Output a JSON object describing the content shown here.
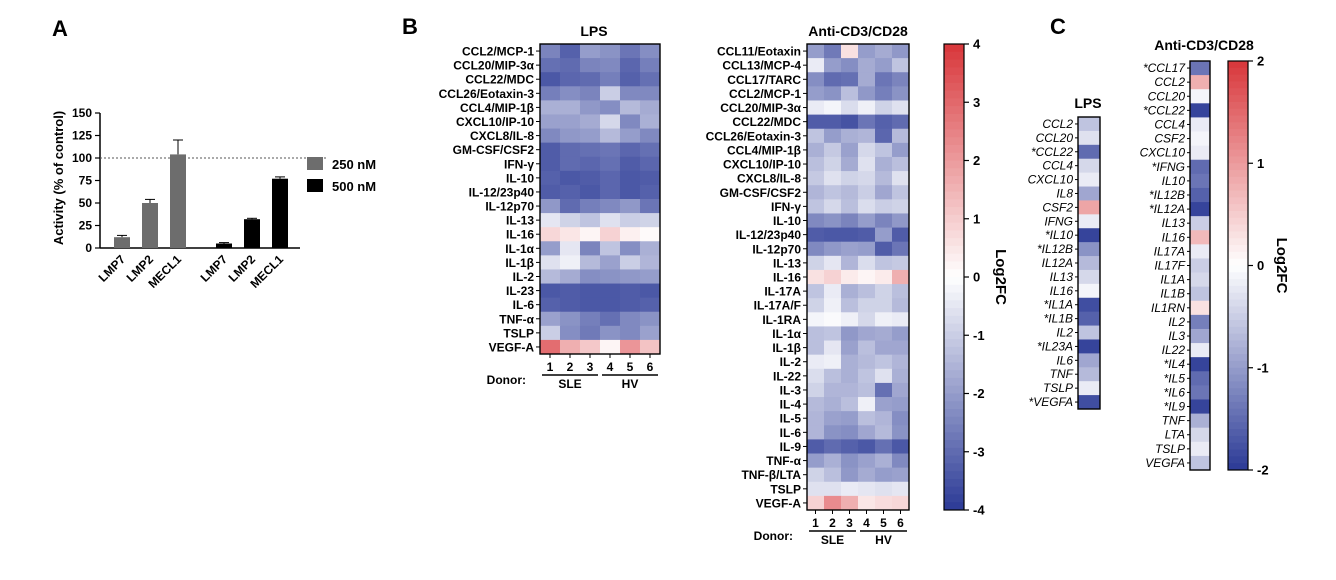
{
  "panel_labels": {
    "a": "A",
    "b": "B",
    "c": "C"
  },
  "colors": {
    "gray": "#6d6d6d",
    "black": "#000000",
    "blue": "#2b3a96",
    "white": "#ffffff",
    "red": "#d8363a"
  },
  "colorbar_b": {
    "label": "Log2FC",
    "ticks": [
      "4",
      "3",
      "2",
      "1",
      "0",
      "-1",
      "-2",
      "-3",
      "-4"
    ],
    "min": -4,
    "max": 4
  },
  "colorbar_c": {
    "label": "Log2FC",
    "ticks": [
      "2",
      "1",
      "0",
      "-1",
      "-2"
    ],
    "min": -2,
    "max": 2
  },
  "chart_data": [
    {
      "type": "bar",
      "panel": "A",
      "ylabel": "Activity (% of control)",
      "ylim": [
        0,
        150
      ],
      "yticks": [
        "0",
        "25",
        "50",
        "75",
        "100",
        "125",
        "150"
      ],
      "reference_line": 100,
      "groups": [
        {
          "name": "250 nM",
          "color": "#6d6d6d",
          "categories": [
            "LMP7",
            "LMP2",
            "MECL1"
          ],
          "values": [
            12,
            50,
            104
          ],
          "errors": [
            2,
            4,
            16
          ]
        },
        {
          "name": "500 nM",
          "color": "#000000",
          "categories": [
            "LMP7",
            "LMP2",
            "MECL1"
          ],
          "values": [
            5,
            32,
            77
          ],
          "errors": [
            1,
            1,
            2
          ]
        }
      ],
      "legend": [
        "250 nM",
        "500 nM"
      ]
    },
    {
      "type": "heatmap",
      "panel": "B-LPS",
      "title": "LPS",
      "rows": [
        "CCL2/MCP-1",
        "CCL20/MIP-3α",
        "CCL22/MDC",
        "CCL26/Eotaxin-3",
        "CCL4/MIP-1β",
        "CXCL10/IP-10",
        "CXCL8/IL-8",
        "GM-CSF/CSF2",
        "IFN-γ",
        "IL-10",
        "IL-12/23p40",
        "IL-12p70",
        "IL-13",
        "IL-16",
        "IL-1α",
        "IL-1β",
        "IL-2",
        "IL-23",
        "IL-6",
        "TNF-α",
        "TSLP",
        "VEGF-A"
      ],
      "columns": [
        "1",
        "2",
        "3",
        "4",
        "5",
        "6"
      ],
      "donor_label": "Donor:",
      "groups": [
        "SLE",
        "HV"
      ],
      "values": [
        [
          -2.5,
          -3.2,
          -2.0,
          -2.2,
          -2.8,
          -2.3
        ],
        [
          -2.9,
          -3.0,
          -2.5,
          -2.4,
          -3.1,
          -2.6
        ],
        [
          -3.4,
          -3.1,
          -3.0,
          -2.6,
          -3.2,
          -2.9
        ],
        [
          -2.6,
          -2.3,
          -2.5,
          -1.0,
          -2.4,
          -2.4
        ],
        [
          -1.6,
          -1.6,
          -2.1,
          -2.3,
          -1.4,
          -1.7
        ],
        [
          -1.9,
          -1.9,
          -1.7,
          -0.8,
          -2.4,
          -1.6
        ],
        [
          -2.4,
          -2.1,
          -2.0,
          -1.4,
          -2.0,
          -2.4
        ],
        [
          -3.3,
          -3.0,
          -2.9,
          -2.8,
          -3.1,
          -2.9
        ],
        [
          -3.3,
          -3.0,
          -3.1,
          -2.9,
          -3.3,
          -3.1
        ],
        [
          -3.2,
          -3.4,
          -3.3,
          -3.1,
          -3.4,
          -3.3
        ],
        [
          -3.3,
          -3.2,
          -3.4,
          -3.1,
          -3.4,
          -3.2
        ],
        [
          -2.1,
          -3.0,
          -2.6,
          -2.4,
          -2.1,
          -2.8
        ],
        [
          -0.5,
          -0.9,
          -1.2,
          -0.6,
          -1.0,
          -0.9
        ],
        [
          0.8,
          0.5,
          0.2,
          0.9,
          0.3,
          0.1
        ],
        [
          -2.0,
          -0.5,
          -2.5,
          -1.2,
          -2.3,
          -1.6
        ],
        [
          -0.6,
          -0.3,
          -1.4,
          -1.9,
          -1.0,
          -1.5
        ],
        [
          -1.4,
          -1.7,
          -2.3,
          -2.2,
          -2.1,
          -2.0
        ],
        [
          -3.4,
          -3.3,
          -3.4,
          -3.4,
          -3.3,
          -3.4
        ],
        [
          -3.2,
          -3.3,
          -3.4,
          -3.4,
          -3.3,
          -3.2
        ],
        [
          -1.9,
          -2.2,
          -2.6,
          -2.9,
          -2.4,
          -2.2
        ],
        [
          -1.0,
          -2.3,
          -2.7,
          -2.2,
          -2.4,
          -1.9
        ],
        [
          2.9,
          1.6,
          1.1,
          0.2,
          2.1,
          1.2
        ]
      ]
    },
    {
      "type": "heatmap",
      "panel": "B-CD3",
      "title": "Anti-CD3/CD28",
      "rows": [
        "CCL11/Eotaxin",
        "CCL13/MCP-4",
        "CCL17/TARC",
        "CCL2/MCP-1",
        "CCL20/MIP-3α",
        "CCL22/MDC",
        "CCL26/Eotaxin-3",
        "CCL4/MIP-1β",
        "CXCL10/IP-10",
        "CXCL8/IL-8",
        "GM-CSF/CSF2",
        "IFN-γ",
        "IL-10",
        "IL-12/23p40",
        "IL-12p70",
        "IL-13",
        "IL-16",
        "IL-17A",
        "IL-17A/F",
        "IL-1RA",
        "IL-1α",
        "IL-1β",
        "IL-2",
        "IL-22",
        "IL-3",
        "IL-4",
        "IL-5",
        "IL-6",
        "IL-9",
        "TNF-α",
        "TNF-β/LTA",
        "TSLP",
        "VEGF-A"
      ],
      "columns": [
        "1",
        "2",
        "3",
        "4",
        "5",
        "6"
      ],
      "donor_label": "Donor:",
      "groups": [
        "SLE",
        "HV"
      ],
      "values": [
        [
          -2.0,
          -2.7,
          0.6,
          -2.0,
          -1.7,
          -2.1
        ],
        [
          -0.4,
          -2.0,
          -2.3,
          -1.7,
          -2.0,
          -1.2
        ],
        [
          -2.3,
          -3.0,
          -2.9,
          -1.7,
          -2.8,
          -2.5
        ],
        [
          -2.0,
          -2.2,
          -1.3,
          -2.1,
          -2.6,
          -2.2
        ],
        [
          -0.4,
          -0.2,
          -0.7,
          -0.3,
          -0.9,
          -0.6
        ],
        [
          -3.3,
          -3.3,
          -3.5,
          -2.8,
          -3.2,
          -3.0
        ],
        [
          -1.2,
          -2.0,
          -1.6,
          -1.5,
          -3.1,
          -1.4
        ],
        [
          -1.6,
          -1.1,
          -1.9,
          -0.8,
          -1.2,
          -2.0
        ],
        [
          -1.3,
          -0.9,
          -1.7,
          -0.6,
          -1.6,
          -1.3
        ],
        [
          -1.1,
          -0.6,
          -0.9,
          -0.8,
          -1.4,
          -0.6
        ],
        [
          -1.5,
          -1.2,
          -1.4,
          -1.0,
          -1.8,
          -1.2
        ],
        [
          -1.2,
          -0.8,
          -1.3,
          -0.7,
          -1.0,
          -0.9
        ],
        [
          -2.4,
          -2.2,
          -2.5,
          -2.0,
          -2.5,
          -2.1
        ],
        [
          -3.3,
          -3.4,
          -3.4,
          -3.3,
          -2.0,
          -3.3
        ],
        [
          -2.4,
          -2.1,
          -1.9,
          -2.0,
          -3.3,
          -2.8
        ],
        [
          -0.9,
          -0.5,
          -1.5,
          -0.7,
          -1.2,
          -1.1
        ],
        [
          0.6,
          0.9,
          0.4,
          0.2,
          0.4,
          1.6
        ],
        [
          -1.2,
          -0.4,
          -1.6,
          -1.3,
          -0.9,
          -1.3
        ],
        [
          -0.9,
          -0.3,
          -1.3,
          -0.9,
          -0.9,
          -1.4
        ],
        [
          -0.2,
          -0.1,
          -0.3,
          -0.8,
          -0.3,
          -0.4
        ],
        [
          -1.3,
          -1.2,
          -2.1,
          -1.8,
          -1.7,
          -2.0
        ],
        [
          -1.3,
          -0.5,
          -1.9,
          -1.3,
          -1.8,
          -1.8
        ],
        [
          -0.4,
          -0.3,
          -1.6,
          -1.4,
          -1.2,
          -1.5
        ],
        [
          -0.7,
          -1.3,
          -1.6,
          -1.2,
          -0.6,
          -1.6
        ],
        [
          -0.9,
          -1.5,
          -1.5,
          -1.3,
          -2.9,
          -1.8
        ],
        [
          -1.4,
          -1.6,
          -1.3,
          -0.3,
          -1.9,
          -2.0
        ],
        [
          -1.5,
          -1.9,
          -2.0,
          -1.3,
          -1.5,
          -2.3
        ],
        [
          -1.5,
          -2.2,
          -2.3,
          -1.8,
          -1.4,
          -2.2
        ],
        [
          -3.3,
          -3.0,
          -3.2,
          -3.4,
          -2.9,
          -3.4
        ],
        [
          -2.0,
          -1.6,
          -2.2,
          -1.9,
          -1.6,
          -2.4
        ],
        [
          -0.9,
          -1.3,
          -2.1,
          -1.7,
          -2.0,
          -1.9
        ],
        [
          -0.6,
          -0.6,
          -0.4,
          -0.5,
          -0.6,
          -0.5
        ],
        [
          0.9,
          2.3,
          1.6,
          0.5,
          0.7,
          0.8
        ]
      ]
    },
    {
      "type": "heatmap",
      "panel": "C-LPS",
      "title": "LPS",
      "rows": [
        "CCL2",
        "CCL20",
        "*CCL22",
        "CCL4",
        "CXCL10",
        "IL8",
        "CSF2",
        "IFNG",
        "*IL10",
        "*IL12B",
        "IL12A",
        "IL13",
        "IL16",
        "*IL1A",
        "*IL1B",
        "IL2",
        "*IL23A",
        "IL6",
        "TNF",
        "TSLP",
        "*VEGFA"
      ],
      "values": [
        -0.6,
        -0.3,
        -1.5,
        -0.4,
        -0.2,
        -0.9,
        0.9,
        -0.2,
        -1.9,
        -1.1,
        -0.7,
        -0.4,
        -0.1,
        -1.8,
        -1.6,
        -0.6,
        -1.9,
        -0.9,
        -0.7,
        -0.2,
        -1.8
      ]
    },
    {
      "type": "heatmap",
      "panel": "C-CD3",
      "title": "Anti-CD3/CD28",
      "rows": [
        "*CCL17",
        "CCL2",
        "CCL20",
        "*CCL22",
        "CCL4",
        "CSF2",
        "CXCL10",
        "*IFNG",
        "IL10",
        "*IL12B",
        "*IL12A",
        "IL13",
        "IL16",
        "IL17A",
        "IL17F",
        "IL1A",
        "IL1B",
        "IL1RN",
        "IL2",
        "IL3",
        "IL22",
        "*IL4",
        "*IL5",
        "*IL6",
        "*IL9",
        "TNF",
        "LTA",
        "TSLP",
        "VEGFA"
      ],
      "values": [
        -1.4,
        0.8,
        -0.1,
        -1.9,
        -0.2,
        -0.1,
        -0.2,
        -1.5,
        -1.4,
        -1.6,
        -1.9,
        -0.5,
        0.7,
        -0.2,
        -0.5,
        -0.4,
        -0.6,
        0.3,
        -1.3,
        -0.9,
        -0.2,
        -1.9,
        -1.5,
        -1.4,
        -1.9,
        -0.8,
        -0.4,
        -0.2,
        -0.6
      ]
    }
  ]
}
